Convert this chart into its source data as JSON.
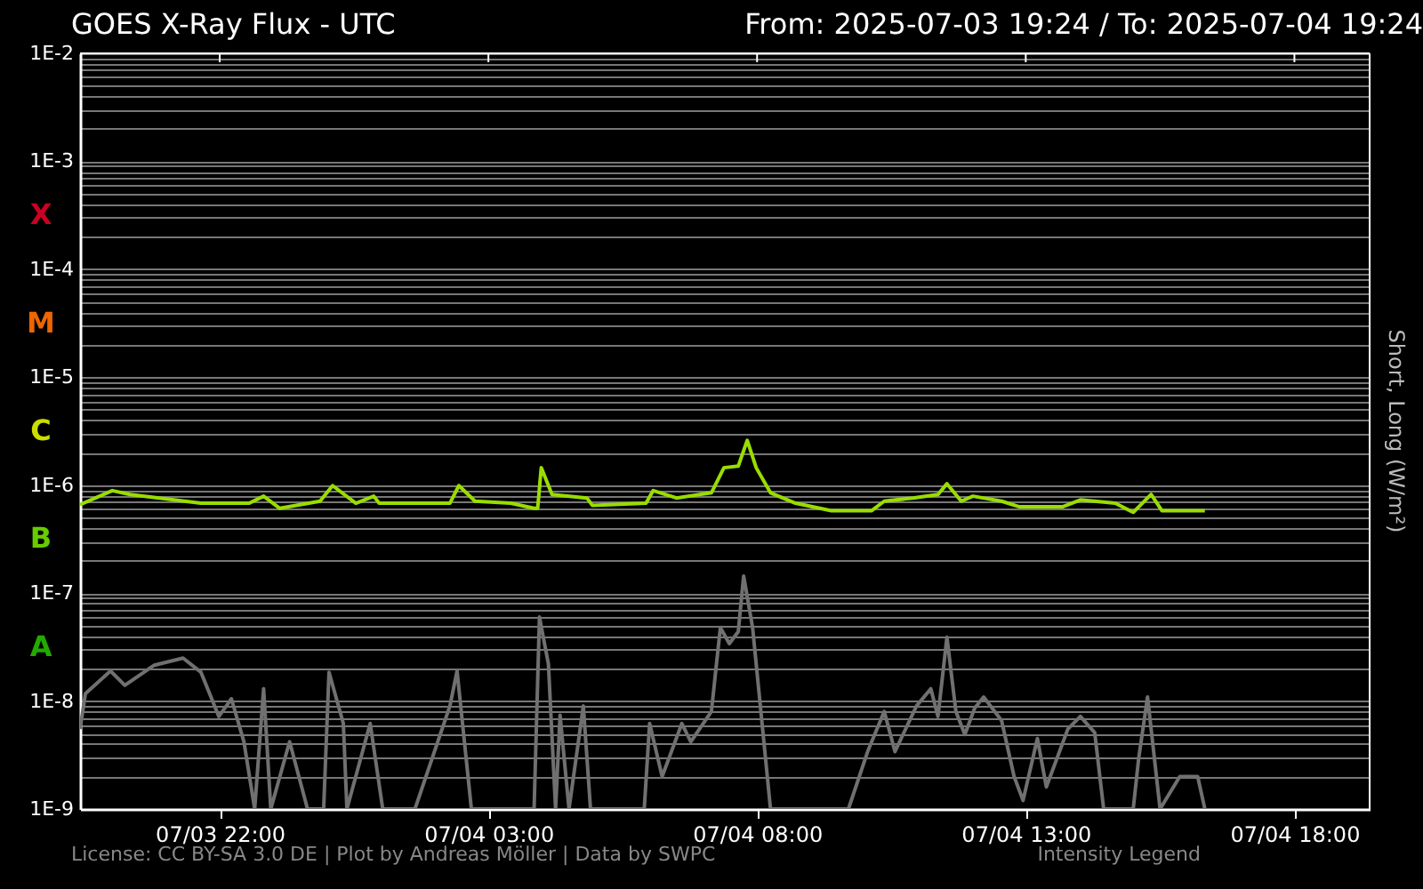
{
  "chart_data": {
    "type": "line",
    "title": "GOES X-Ray Flux - UTC",
    "subtitle": "From: 2025-07-03 19:24  /  To: 2025-07-04 19:24",
    "ylabel": "Short, Long (W/m²)",
    "annotations": [
      "X",
      "M",
      "C",
      "B",
      "A",
      "License: CC BY-SA 3.0 DE | Plot by Andreas Möller | Data by SWPC",
      "Intensity Legend"
    ],
    "series": [
      {
        "color": "#707070",
        "x": [
          "2025-07-03T19:24",
          "2025-07-03T19:30",
          "2025-07-03T19:58",
          "2025-07-03T20:14",
          "2025-07-03T20:47",
          "2025-07-03T21:19",
          "2025-07-03T21:39",
          "2025-07-03T21:59",
          "2025-07-03T22:13",
          "2025-07-03T22:27",
          "2025-07-03T22:39",
          "2025-07-03T22:49",
          "2025-07-03T22:57",
          "2025-07-03T23:18",
          "2025-07-03T23:38",
          "2025-07-03T23:56",
          "2025-07-04T00:02",
          "2025-07-04T00:18",
          "2025-07-04T00:22",
          "2025-07-04T00:48",
          "2025-07-04T01:02",
          "2025-07-04T01:38",
          "2025-07-04T02:17",
          "2025-07-04T02:25",
          "2025-07-04T02:41",
          "2025-07-04T03:51",
          "2025-07-04T03:57",
          "2025-07-04T04:07",
          "2025-07-04T04:15",
          "2025-07-04T04:20",
          "2025-07-04T04:30",
          "2025-07-04T04:46",
          "2025-07-04T04:54",
          "2025-07-04T05:54",
          "2025-07-04T06:00",
          "2025-07-04T06:14",
          "2025-07-04T06:36",
          "2025-07-04T06:46",
          "2025-07-04T07:09",
          "2025-07-04T07:19",
          "2025-07-04T07:29",
          "2025-07-04T07:39",
          "2025-07-04T07:45",
          "2025-07-04T07:55",
          "2025-07-04T08:15",
          "2025-07-04T09:42",
          "2025-07-04T10:04",
          "2025-07-04T10:22",
          "2025-07-04T10:34",
          "2025-07-04T10:58",
          "2025-07-04T11:14",
          "2025-07-04T11:22",
          "2025-07-04T11:32",
          "2025-07-04T11:42",
          "2025-07-04T11:52",
          "2025-07-04T12:03",
          "2025-07-04T12:13",
          "2025-07-04T12:33",
          "2025-07-04T12:47",
          "2025-07-04T12:57",
          "2025-07-04T13:13",
          "2025-07-04T13:23",
          "2025-07-04T13:47",
          "2025-07-04T14:01",
          "2025-07-04T14:17",
          "2025-07-04T14:27",
          "2025-07-04T15:00",
          "2025-07-04T15:06",
          "2025-07-04T15:16",
          "2025-07-04T15:30",
          "2025-07-04T15:52",
          "2025-07-04T16:12",
          "2025-07-04T16:20"
        ],
        "values": [
          5.5e-09,
          1.17e-08,
          1.9e-08,
          1.4e-08,
          2.15e-08,
          2.5e-08,
          1.85e-08,
          7.2e-09,
          1.05e-08,
          4.2e-09,
          1e-09,
          1.3e-08,
          1e-09,
          4.2e-09,
          1e-09,
          1e-09,
          1.85e-08,
          6.2e-09,
          1e-09,
          6.2e-09,
          1e-09,
          1e-09,
          9e-09,
          1.9e-08,
          1e-09,
          1e-09,
          6e-08,
          2.2e-08,
          1e-09,
          7.4e-09,
          1e-09,
          9e-09,
          1e-09,
          1e-09,
          6.2e-09,
          2e-09,
          6.2e-09,
          4.2e-09,
          8e-09,
          4.8e-08,
          3.4e-08,
          4.4e-08,
          1.44e-07,
          4.8e-08,
          1e-09,
          1e-09,
          3.5e-09,
          8e-09,
          3.4e-09,
          9e-09,
          1.3e-08,
          7.2e-09,
          3.9e-08,
          8e-09,
          4.9e-09,
          8.6e-09,
          1.09e-08,
          6.6e-09,
          2e-09,
          1.2e-09,
          4.5e-09,
          1.6e-09,
          5.5e-09,
          7.2e-09,
          5.1e-09,
          1e-09,
          1e-09,
          2.9e-09,
          1.09e-08,
          1e-09,
          2e-09,
          2e-09,
          1e-09
        ]
      },
      {
        "color": "#99dd00",
        "x": [
          "2025-07-03T19:24",
          "2025-07-03T20:00",
          "2025-07-03T20:20",
          "2025-07-03T21:39",
          "2025-07-03T22:33",
          "2025-07-03T22:49",
          "2025-07-03T23:07",
          "2025-07-03T23:52",
          "2025-07-04T00:06",
          "2025-07-04T00:32",
          "2025-07-04T00:52",
          "2025-07-04T00:58",
          "2025-07-04T02:17",
          "2025-07-04T02:27",
          "2025-07-04T02:45",
          "2025-07-04T03:25",
          "2025-07-04T03:51",
          "2025-07-04T03:55",
          "2025-07-04T03:59",
          "2025-07-04T04:11",
          "2025-07-04T04:50",
          "2025-07-04T04:56",
          "2025-07-04T05:56",
          "2025-07-04T06:04",
          "2025-07-04T06:30",
          "2025-07-04T07:09",
          "2025-07-04T07:23",
          "2025-07-04T07:39",
          "2025-07-04T07:49",
          "2025-07-04T07:59",
          "2025-07-04T08:15",
          "2025-07-04T08:43",
          "2025-07-04T09:23",
          "2025-07-04T10:08",
          "2025-07-04T10:22",
          "2025-07-04T10:54",
          "2025-07-04T11:22",
          "2025-07-04T11:32",
          "2025-07-04T11:48",
          "2025-07-04T12:01",
          "2025-07-04T12:33",
          "2025-07-04T12:53",
          "2025-07-04T13:41",
          "2025-07-04T14:01",
          "2025-07-04T14:40",
          "2025-07-04T15:00",
          "2025-07-04T15:20",
          "2025-07-04T15:32",
          "2025-07-04T16:20"
        ],
        "values": [
          6.6e-07,
          8.9e-07,
          8.2e-07,
          6.8e-07,
          6.8e-07,
          7.9e-07,
          6.1e-07,
          7.1e-07,
          9.9e-07,
          6.8e-07,
          7.9e-07,
          6.8e-07,
          6.8e-07,
          9.9e-07,
          7.1e-07,
          6.8e-07,
          6.1e-07,
          6.1e-07,
          1.45e-06,
          8.2e-07,
          7.6e-07,
          6.5e-07,
          6.8e-07,
          8.9e-07,
          7.6e-07,
          8.5e-07,
          1.45e-06,
          1.5e-06,
          2.6e-06,
          1.45e-06,
          8.5e-07,
          6.8e-07,
          5.8e-07,
          5.8e-07,
          7.1e-07,
          7.6e-07,
          8.2e-07,
          1.03e-06,
          7.1e-07,
          7.9e-07,
          7.1e-07,
          6.3e-07,
          6.3e-07,
          7.3e-07,
          6.8e-07,
          5.6e-07,
          8.2e-07,
          5.8e-07,
          5.8e-07
        ]
      }
    ],
    "xlim": [
      "2025-07-03T19:24",
      "2025-07-04T19:24"
    ],
    "xticks": [
      {
        "value": "2025-07-03T22:00",
        "label": "07/03 22:00"
      },
      {
        "value": "2025-07-04T03:00",
        "label": "07/04 03:00"
      },
      {
        "value": "2025-07-04T08:00",
        "label": "07/04 08:00"
      },
      {
        "value": "2025-07-04T13:00",
        "label": "07/04 13:00"
      },
      {
        "value": "2025-07-04T18:00",
        "label": "07/04 18:00"
      }
    ],
    "ylim": [
      1e-09,
      0.01
    ],
    "yticks": [
      {
        "value": 1e-09,
        "label": "1E-9"
      },
      {
        "value": 2e-09,
        "label": null
      },
      {
        "value": 3e-09,
        "label": null
      },
      {
        "value": 4e-09,
        "label": null
      },
      {
        "value": 5e-09,
        "label": null
      },
      {
        "value": 6e-09,
        "label": null
      },
      {
        "value": 7e-09,
        "label": null
      },
      {
        "value": 8e-09,
        "label": null
      },
      {
        "value": 9e-09,
        "label": null
      },
      {
        "value": 1e-08,
        "label": "1E-8"
      },
      {
        "value": 2e-08,
        "label": null
      },
      {
        "value": 3e-08,
        "label": null
      },
      {
        "value": 4e-08,
        "label": null
      },
      {
        "value": 5e-08,
        "label": null
      },
      {
        "value": 6e-08,
        "label": null
      },
      {
        "value": 7e-08,
        "label": null
      },
      {
        "value": 8e-08,
        "label": null
      },
      {
        "value": 9e-08,
        "label": null
      },
      {
        "value": 1e-07,
        "label": "1E-7"
      },
      {
        "value": 2e-07,
        "label": null
      },
      {
        "value": 3e-07,
        "label": null
      },
      {
        "value": 4e-07,
        "label": null
      },
      {
        "value": 5e-07,
        "label": null
      },
      {
        "value": 6e-07,
        "label": null
      },
      {
        "value": 7e-07,
        "label": null
      },
      {
        "value": 8e-07,
        "label": null
      },
      {
        "value": 9e-07,
        "label": null
      },
      {
        "value": 1e-06,
        "label": "1E-6"
      },
      {
        "value": 2e-06,
        "label": null
      },
      {
        "value": 3e-06,
        "label": null
      },
      {
        "value": 4e-06,
        "label": null
      },
      {
        "value": 5e-06,
        "label": null
      },
      {
        "value": 6e-06,
        "label": null
      },
      {
        "value": 7e-06,
        "label": null
      },
      {
        "value": 8e-06,
        "label": null
      },
      {
        "value": 9e-06,
        "label": null
      },
      {
        "value": 1e-05,
        "label": "1E-5"
      },
      {
        "value": 2e-05,
        "label": null
      },
      {
        "value": 3e-05,
        "label": null
      },
      {
        "value": 4e-05,
        "label": null
      },
      {
        "value": 5e-05,
        "label": null
      },
      {
        "value": 6e-05,
        "label": null
      },
      {
        "value": 7e-05,
        "label": null
      },
      {
        "value": 8e-05,
        "label": null
      },
      {
        "value": 9e-05,
        "label": null
      },
      {
        "value": 0.0001,
        "label": "1E-4"
      },
      {
        "value": 0.0002,
        "label": null
      },
      {
        "value": 0.0003,
        "label": null
      },
      {
        "value": 0.0004,
        "label": null
      },
      {
        "value": 0.0005,
        "label": null
      },
      {
        "value": 0.0006,
        "label": null
      },
      {
        "value": 0.0007,
        "label": null
      },
      {
        "value": 0.0008,
        "label": null
      },
      {
        "value": 0.0009,
        "label": null
      },
      {
        "value": 0.001,
        "label": "1E-3"
      },
      {
        "value": 0.002,
        "label": null
      },
      {
        "value": 0.003,
        "label": null
      },
      {
        "value": 0.004,
        "label": null
      },
      {
        "value": 0.005,
        "label": null
      },
      {
        "value": 0.006,
        "label": null
      },
      {
        "value": 0.007,
        "label": null
      },
      {
        "value": 0.008,
        "label": null
      },
      {
        "value": 0.009,
        "label": null
      },
      {
        "value": 0.01,
        "label": "1E-2"
      }
    ],
    "log": true,
    "grid": "y",
    "legend": false,
    "line_style": "solid",
    "marker": "none"
  }
}
